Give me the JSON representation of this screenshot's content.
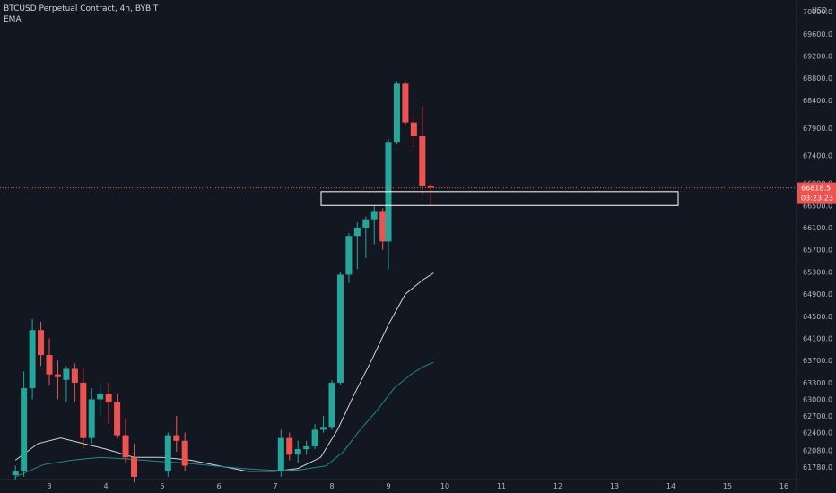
{
  "header": {
    "symbol_line": "BTCUSD Perpetual Contract, 4h, BYBIT",
    "indicator": "EMA"
  },
  "price_axis": {
    "currency": "USD",
    "ticks": [
      "70000.0",
      "69600.0",
      "69200.0",
      "68800.0",
      "68400.0",
      "67900.0",
      "67400.0",
      "66900.0",
      "66500.0",
      "66100.0",
      "65700.0",
      "65300.0",
      "64900.0",
      "64500.0",
      "64100.0",
      "63700.0",
      "63300.0",
      "63000.0",
      "62700.0",
      "62400.0",
      "62080.0",
      "61780.0"
    ],
    "last_price": "66818.5",
    "countdown": "03:23:23"
  },
  "colors": {
    "background": "#131722",
    "up": "#26a69a",
    "down": "#ef5350",
    "ema_fast": "#d1d4dc",
    "ema_slow": "#1f8a8a",
    "price_line": "#ef5350"
  },
  "chart_data": {
    "type": "candlestick",
    "x_ticks": [
      "3",
      "4",
      "5",
      "6",
      "7",
      "8",
      "9",
      "10",
      "11",
      "12",
      "13",
      "14",
      "15",
      "16"
    ],
    "ylim": [
      61550,
      70050
    ],
    "candles": [
      {
        "x": 2.4,
        "o": 61630,
        "h": 61800,
        "l": 61550,
        "c": 61700
      },
      {
        "x": 2.55,
        "o": 61700,
        "h": 63500,
        "l": 61600,
        "c": 63200
      },
      {
        "x": 2.7,
        "o": 63200,
        "h": 64450,
        "l": 63000,
        "c": 64250
      },
      {
        "x": 2.85,
        "o": 64250,
        "h": 64400,
        "l": 63600,
        "c": 63800
      },
      {
        "x": 3.0,
        "o": 63800,
        "h": 64100,
        "l": 63250,
        "c": 63450
      },
      {
        "x": 3.15,
        "o": 63450,
        "h": 63700,
        "l": 63000,
        "c": 63400
      },
      {
        "x": 3.3,
        "o": 63350,
        "h": 63600,
        "l": 62950,
        "c": 63550
      },
      {
        "x": 3.45,
        "o": 63550,
        "h": 63650,
        "l": 62950,
        "c": 63300
      },
      {
        "x": 3.6,
        "o": 63300,
        "h": 63550,
        "l": 62100,
        "c": 62300
      },
      {
        "x": 3.75,
        "o": 62300,
        "h": 63200,
        "l": 62200,
        "c": 63000
      },
      {
        "x": 3.9,
        "o": 63000,
        "h": 63300,
        "l": 62700,
        "c": 63100
      },
      {
        "x": 4.05,
        "o": 63100,
        "h": 63300,
        "l": 62550,
        "c": 62950
      },
      {
        "x": 4.2,
        "o": 62950,
        "h": 63100,
        "l": 62300,
        "c": 62350
      },
      {
        "x": 4.35,
        "o": 62350,
        "h": 62650,
        "l": 61850,
        "c": 61950
      },
      {
        "x": 4.5,
        "o": 61950,
        "h": 62200,
        "l": 61500,
        "c": 61600
      },
      {
        "x": 5.1,
        "o": 61700,
        "h": 62400,
        "l": 61600,
        "c": 62350
      },
      {
        "x": 5.25,
        "o": 62350,
        "h": 62700,
        "l": 62050,
        "c": 62250
      },
      {
        "x": 5.4,
        "o": 62250,
        "h": 62400,
        "l": 61700,
        "c": 61800
      },
      {
        "x": 7.1,
        "o": 61700,
        "h": 62450,
        "l": 61600,
        "c": 62300
      },
      {
        "x": 7.25,
        "o": 62300,
        "h": 62400,
        "l": 61900,
        "c": 62000
      },
      {
        "x": 7.4,
        "o": 62000,
        "h": 62250,
        "l": 61850,
        "c": 62100
      },
      {
        "x": 7.55,
        "o": 62100,
        "h": 62250,
        "l": 62000,
        "c": 62150
      },
      {
        "x": 7.7,
        "o": 62150,
        "h": 62550,
        "l": 62100,
        "c": 62450
      },
      {
        "x": 7.85,
        "o": 62450,
        "h": 62700,
        "l": 62400,
        "c": 62500
      },
      {
        "x": 8.0,
        "o": 62500,
        "h": 63350,
        "l": 62450,
        "c": 63300
      },
      {
        "x": 8.15,
        "o": 63300,
        "h": 65300,
        "l": 63250,
        "c": 65250
      },
      {
        "x": 8.3,
        "o": 65250,
        "h": 66000,
        "l": 65100,
        "c": 65950
      },
      {
        "x": 8.45,
        "o": 65950,
        "h": 66200,
        "l": 65350,
        "c": 66100
      },
      {
        "x": 8.6,
        "o": 66100,
        "h": 66300,
        "l": 65550,
        "c": 66250
      },
      {
        "x": 8.75,
        "o": 66250,
        "h": 66500,
        "l": 65800,
        "c": 66400
      },
      {
        "x": 8.9,
        "o": 66400,
        "h": 66450,
        "l": 65700,
        "c": 65850
      },
      {
        "x": 9.0,
        "o": 65850,
        "h": 67700,
        "l": 65350,
        "c": 67650
      },
      {
        "x": 9.15,
        "o": 67650,
        "h": 68750,
        "l": 67600,
        "c": 68700
      },
      {
        "x": 9.3,
        "o": 68700,
        "h": 68750,
        "l": 67950,
        "c": 68000
      },
      {
        "x": 9.45,
        "o": 68000,
        "h": 68150,
        "l": 67550,
        "c": 67750
      },
      {
        "x": 9.6,
        "o": 67750,
        "h": 68300,
        "l": 66700,
        "c": 66850
      },
      {
        "x": 9.75,
        "o": 66850,
        "h": 66900,
        "l": 66500,
        "c": 66818.5
      }
    ],
    "ema_fast": [
      [
        2.4,
        61900
      ],
      [
        2.8,
        62200
      ],
      [
        3.2,
        62300
      ],
      [
        3.6,
        62200
      ],
      [
        4.0,
        62100
      ],
      [
        4.5,
        61950
      ],
      [
        5.0,
        61950
      ],
      [
        5.5,
        61900
      ],
      [
        6.0,
        61800
      ],
      [
        6.5,
        61700
      ],
      [
        7.0,
        61700
      ],
      [
        7.4,
        61750
      ],
      [
        7.8,
        61950
      ],
      [
        8.1,
        62450
      ],
      [
        8.4,
        63100
      ],
      [
        8.7,
        63700
      ],
      [
        9.0,
        64350
      ],
      [
        9.3,
        64900
      ],
      [
        9.6,
        65150
      ],
      [
        9.8,
        65280
      ]
    ],
    "ema_slow": [
      [
        2.4,
        61600
      ],
      [
        2.9,
        61820
      ],
      [
        3.4,
        61900
      ],
      [
        3.9,
        61950
      ],
      [
        4.4,
        61920
      ],
      [
        4.9,
        61880
      ],
      [
        5.4,
        61850
      ],
      [
        5.9,
        61800
      ],
      [
        6.4,
        61750
      ],
      [
        6.9,
        61720
      ],
      [
        7.4,
        61720
      ],
      [
        7.9,
        61800
      ],
      [
        8.2,
        62050
      ],
      [
        8.5,
        62450
      ],
      [
        8.8,
        62800
      ],
      [
        9.1,
        63200
      ],
      [
        9.4,
        63450
      ],
      [
        9.6,
        63580
      ],
      [
        9.8,
        63670
      ]
    ]
  }
}
